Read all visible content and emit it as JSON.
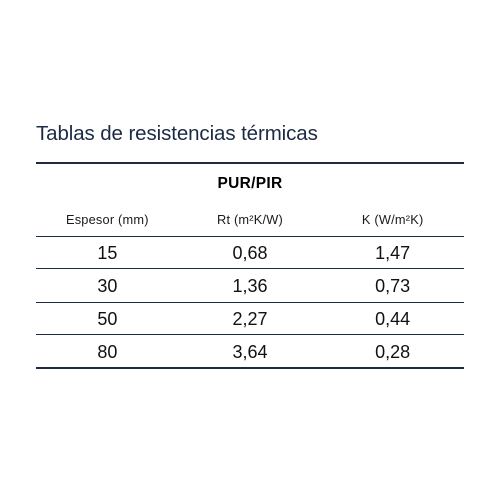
{
  "title": "Tablas de resistencias térmicas",
  "table": {
    "group_label": "PUR/PIR",
    "headers": [
      "Espesor (mm)",
      "Rt (m²K/W)",
      "K (W/m²K)"
    ],
    "rows": [
      [
        "15",
        "0,68",
        "1,47"
      ],
      [
        "30",
        "1,36",
        "0,73"
      ],
      [
        "50",
        "2,27",
        "0,44"
      ],
      [
        "80",
        "3,64",
        "0,28"
      ]
    ]
  },
  "colors": {
    "title": "#1d2a44",
    "rule": "#1d2a44",
    "text": "#111111"
  }
}
